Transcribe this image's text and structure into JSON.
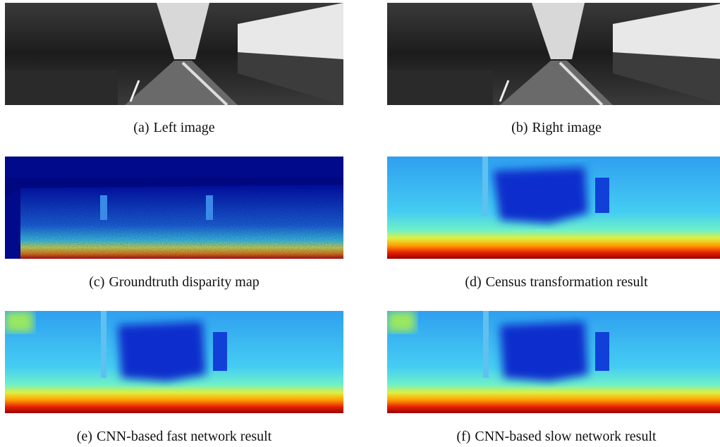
{
  "subfigures": [
    {
      "label": "(a)",
      "caption": "Left image"
    },
    {
      "label": "(b)",
      "caption": "Right image"
    },
    {
      "label": "(c)",
      "caption": "Groundtruth disparity map"
    },
    {
      "label": "(d)",
      "caption": "Census transformation result"
    },
    {
      "label": "(e)",
      "caption": "CNN-based fast network result"
    },
    {
      "label": "(f)",
      "caption": "CNN-based slow network result"
    }
  ]
}
